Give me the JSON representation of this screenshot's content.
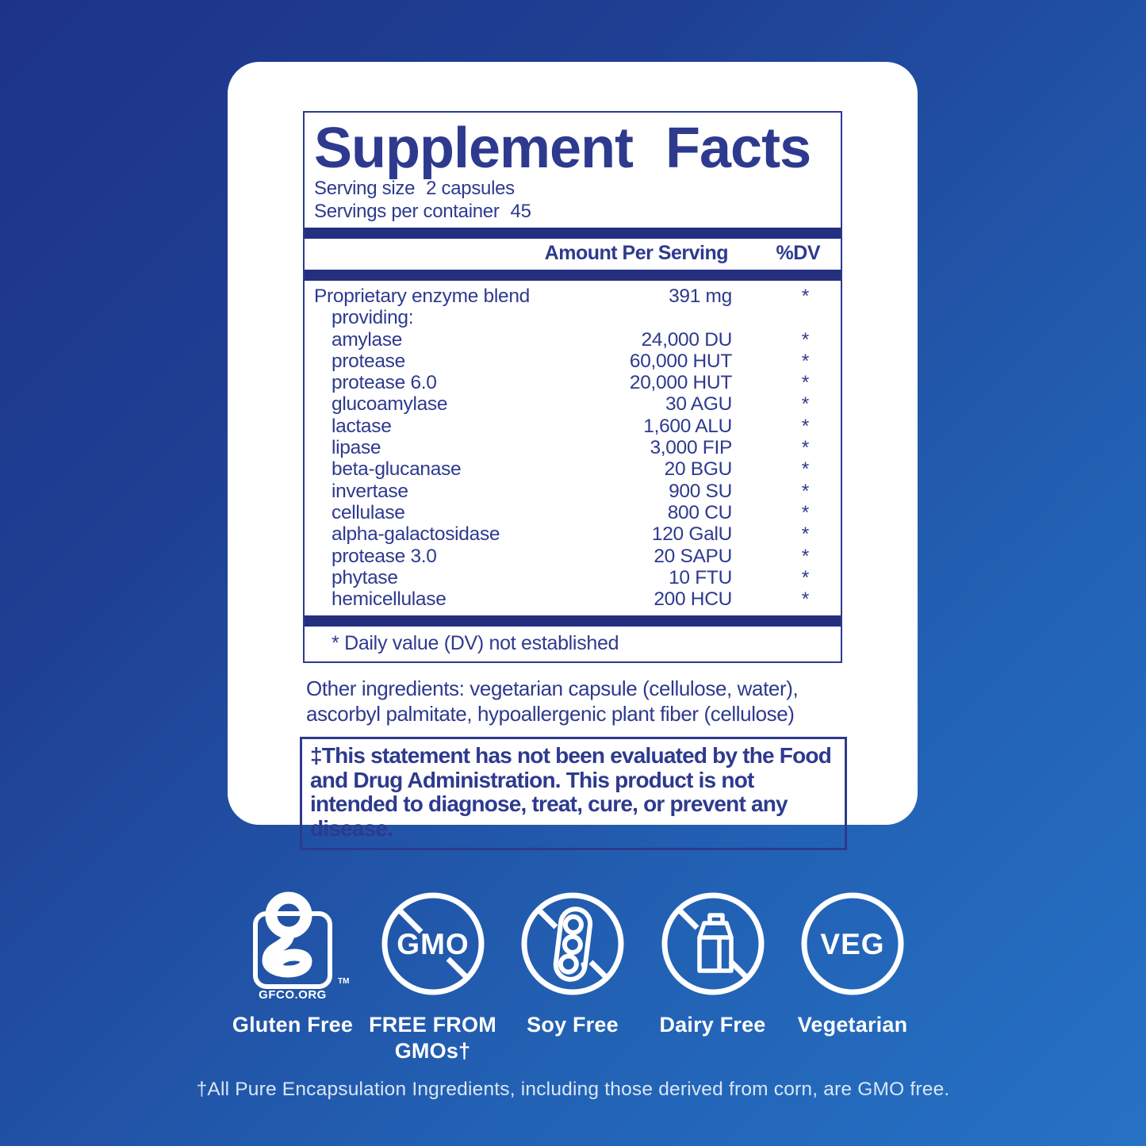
{
  "colors": {
    "navy": "#2d3a8e",
    "bar": "#242f80",
    "bg1": "#1d3389",
    "bg2": "#2672c5",
    "white": "#ffffff",
    "footnote": "#d9e7f5"
  },
  "panel": {
    "title": "Supplement Facts",
    "serving_size_label": "Serving size",
    "serving_size_value": "2 capsules",
    "servings_label": "Servings per container",
    "servings_value": "45",
    "col_amount": "Amount Per Serving",
    "col_dv": "%DV",
    "rows": [
      {
        "name": "Proprietary enzyme blend",
        "amount": "391 mg",
        "dv": "*",
        "indent": false
      },
      {
        "name": "providing:",
        "amount": "",
        "dv": "",
        "indent": true
      },
      {
        "name": "amylase",
        "amount": "24,000 DU",
        "dv": "*",
        "indent": true
      },
      {
        "name": "protease",
        "amount": "60,000 HUT",
        "dv": "*",
        "indent": true
      },
      {
        "name": "protease 6.0",
        "amount": "20,000 HUT",
        "dv": "*",
        "indent": true
      },
      {
        "name": "glucoamylase",
        "amount": "30 AGU",
        "dv": "*",
        "indent": true
      },
      {
        "name": "lactase",
        "amount": "1,600 ALU",
        "dv": "*",
        "indent": true
      },
      {
        "name": "lipase",
        "amount": "3,000 FIP",
        "dv": "*",
        "indent": true
      },
      {
        "name": "beta-glucanase",
        "amount": "20 BGU",
        "dv": "*",
        "indent": true
      },
      {
        "name": "invertase",
        "amount": "900 SU",
        "dv": "*",
        "indent": true
      },
      {
        "name": "cellulase",
        "amount": "800 CU",
        "dv": "*",
        "indent": true
      },
      {
        "name": "alpha-galactosidase",
        "amount": "120 GalU",
        "dv": "*",
        "indent": true
      },
      {
        "name": "protease 3.0",
        "amount": "20 SAPU",
        "dv": "*",
        "indent": true
      },
      {
        "name": "phytase",
        "amount": "10 FTU",
        "dv": "*",
        "indent": true
      },
      {
        "name": "hemicellulase",
        "amount": "200 HCU",
        "dv": "*",
        "indent": true
      }
    ],
    "dv_note": "* Daily value (DV) not established"
  },
  "other_ingredients": "Other ingredients: vegetarian capsule (cellulose, water), ascorbyl palmitate, hypoallergenic plant fiber (cellulose)",
  "fda_statement": "‡This statement has not been evaluated by the Food and Drug Administration. This product is not intended to diagnose, treat, cure, or prevent any disease.",
  "badges": [
    {
      "icon": "gfco-gluten-free-icon",
      "glyph": "g",
      "org": "GFCO.ORG",
      "tm": "TM",
      "label": "Gluten Free"
    },
    {
      "icon": "no-gmo-icon",
      "glyph": "GMO",
      "label": "FREE FROM GMOs†"
    },
    {
      "icon": "soy-free-icon",
      "label": "Soy Free"
    },
    {
      "icon": "dairy-free-icon",
      "label": "Dairy Free"
    },
    {
      "icon": "vegetarian-icon",
      "glyph": "VEG",
      "label": "Vegetarian"
    }
  ],
  "footnote": "†All Pure Encapsulation Ingredients, including those derived from corn, are GMO free."
}
